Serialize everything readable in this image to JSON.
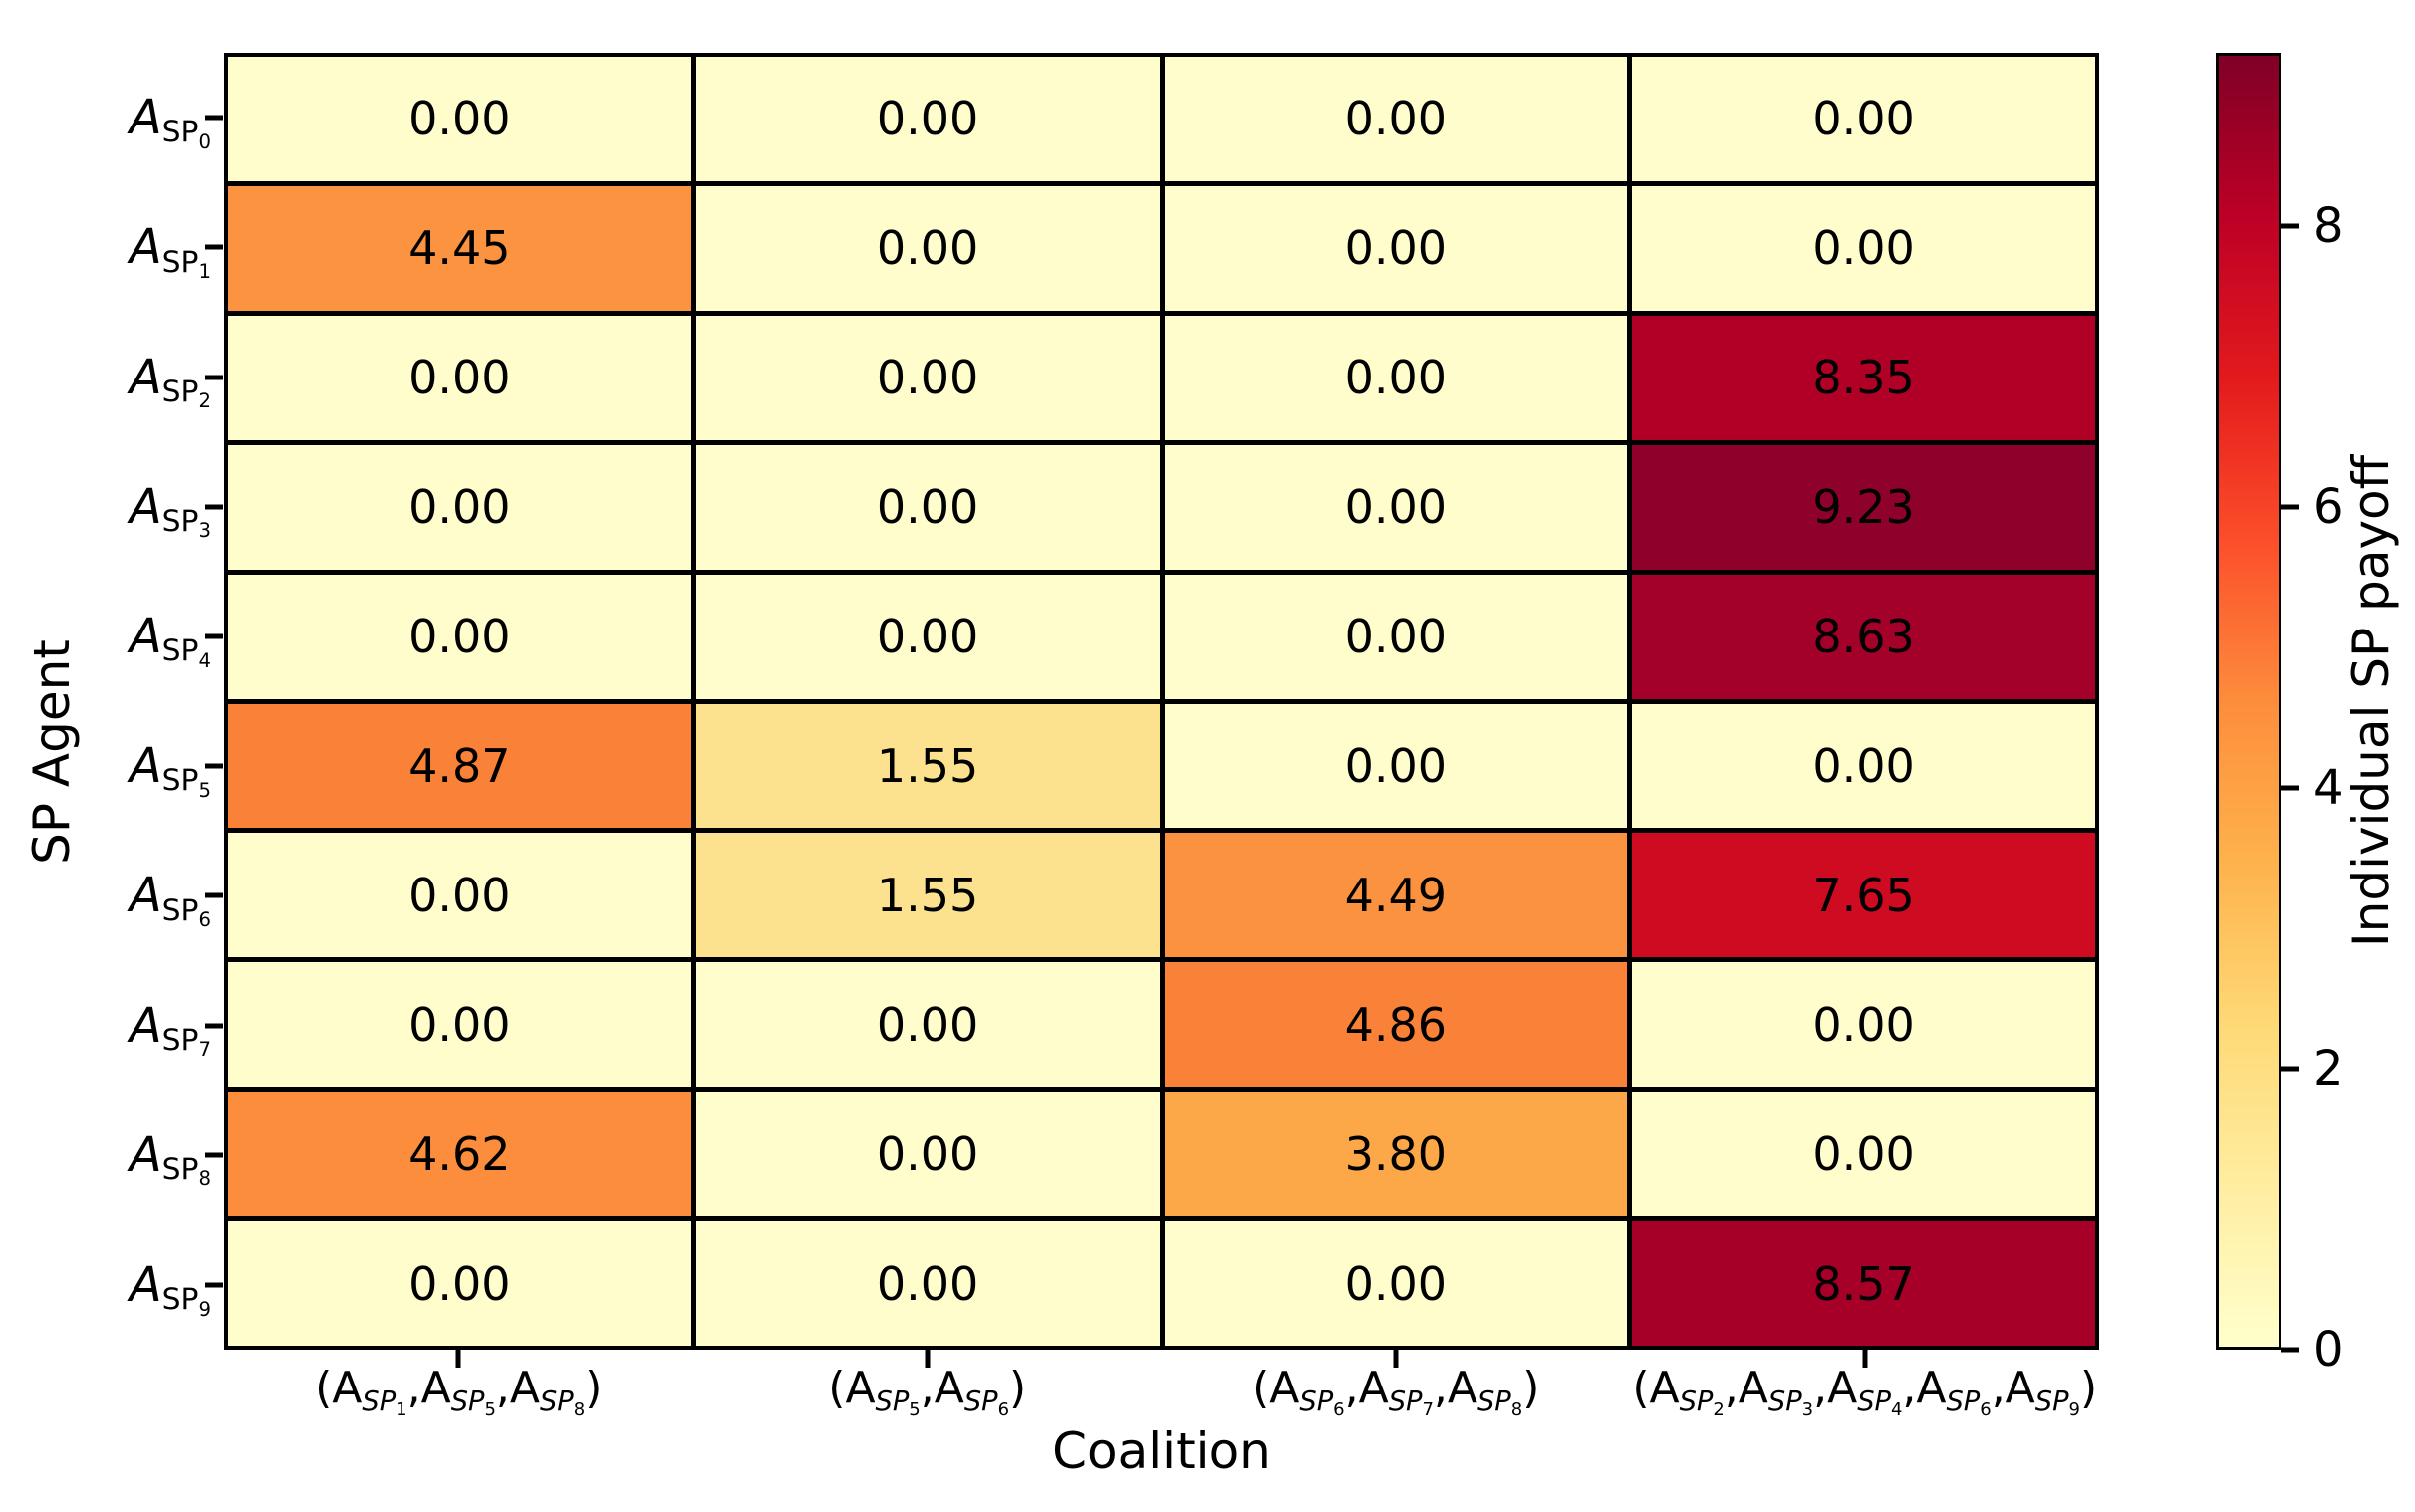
{
  "figure": {
    "xaxis_title": "Coalition",
    "yaxis_title": "SP Agent",
    "colorbar_title": "Individual SP payoff"
  },
  "chart_data": {
    "type": "heatmap",
    "title": "",
    "xlabel": "Coalition",
    "ylabel": "SP Agent",
    "colorbar_label": "Individual SP payoff",
    "colormap": "YlOrRd",
    "vmin": 0,
    "vmax": 9.23,
    "grid": "black cell borders",
    "legend_position": "right colorbar",
    "rows_plain": [
      "A_SP0",
      "A_SP1",
      "A_SP2",
      "A_SP3",
      "A_SP4",
      "A_SP5",
      "A_SP6",
      "A_SP7",
      "A_SP8",
      "A_SP9"
    ],
    "row_agents": [
      0,
      1,
      2,
      3,
      4,
      5,
      6,
      7,
      8,
      9
    ],
    "columns_plain": [
      "(A_SP1,A_SP5,A_SP8)",
      "(A_SP5,A_SP6)",
      "(A_SP6,A_SP7,A_SP8)",
      "(A_SP2,A_SP3,A_SP4,A_SP6,A_SP9)"
    ],
    "column_agents": [
      [
        1,
        5,
        8
      ],
      [
        5,
        6
      ],
      [
        6,
        7,
        8
      ],
      [
        2,
        3,
        4,
        6,
        9
      ]
    ],
    "values": [
      [
        0.0,
        0.0,
        0.0,
        0.0
      ],
      [
        4.45,
        0.0,
        0.0,
        0.0
      ],
      [
        0.0,
        0.0,
        0.0,
        8.35
      ],
      [
        0.0,
        0.0,
        0.0,
        9.23
      ],
      [
        0.0,
        0.0,
        0.0,
        8.63
      ],
      [
        4.87,
        1.55,
        0.0,
        0.0
      ],
      [
        0.0,
        1.55,
        4.49,
        7.65
      ],
      [
        0.0,
        0.0,
        4.86,
        0.0
      ],
      [
        4.62,
        0.0,
        3.8,
        0.0
      ],
      [
        0.0,
        0.0,
        0.0,
        8.57
      ]
    ],
    "value_labels": [
      [
        "0.00",
        "0.00",
        "0.00",
        "0.00"
      ],
      [
        "4.45",
        "0.00",
        "0.00",
        "0.00"
      ],
      [
        "0.00",
        "0.00",
        "0.00",
        "8.35"
      ],
      [
        "0.00",
        "0.00",
        "0.00",
        "9.23"
      ],
      [
        "0.00",
        "0.00",
        "0.00",
        "8.63"
      ],
      [
        "4.87",
        "1.55",
        "0.00",
        "0.00"
      ],
      [
        "0.00",
        "1.55",
        "4.49",
        "7.65"
      ],
      [
        "0.00",
        "0.00",
        "4.86",
        "0.00"
      ],
      [
        "4.62",
        "0.00",
        "3.80",
        "0.00"
      ],
      [
        "0.00",
        "0.00",
        "0.00",
        "8.57"
      ]
    ],
    "cell_colors": [
      [
        "#FFFDCC",
        "#FFFDCC",
        "#FFFDCC",
        "#FFFDCC"
      ],
      [
        "#FB9340",
        "#FFFDCC",
        "#FFFDCC",
        "#FFFDCC"
      ],
      [
        "#FFFDCC",
        "#FFFDCC",
        "#FFFDCC",
        "#B00026"
      ],
      [
        "#FFFDCC",
        "#FFFDCC",
        "#FFFDCC",
        "#8D012B"
      ],
      [
        "#FFFDCC",
        "#FFFDCC",
        "#FFFDCC",
        "#A3012A"
      ],
      [
        "#FA8138",
        "#FCE28F",
        "#FFFDCC",
        "#FFFDCC"
      ],
      [
        "#FFFDCC",
        "#FCE28F",
        "#FB923F",
        "#CE0B21"
      ],
      [
        "#FFFDCC",
        "#FFFDCC",
        "#FA8238",
        "#FFFDCC"
      ],
      [
        "#FB8D3C",
        "#FFFDCC",
        "#FDA848",
        "#FFFDCC"
      ],
      [
        "#FFFDCC",
        "#FFFDCC",
        "#FFFDCC",
        "#A70028"
      ]
    ],
    "colorbar_ticks": [
      0,
      2,
      4,
      6,
      8
    ],
    "colormap_stops": [
      {
        "pos": 0,
        "color": "#FFFFCC"
      },
      {
        "pos": 12.5,
        "color": "#FFEDA0"
      },
      {
        "pos": 25,
        "color": "#FED976"
      },
      {
        "pos": 37.5,
        "color": "#FEB24C"
      },
      {
        "pos": 50,
        "color": "#FD8D3C"
      },
      {
        "pos": 62.5,
        "color": "#FC4E2A"
      },
      {
        "pos": 75,
        "color": "#E31A1C"
      },
      {
        "pos": 87.5,
        "color": "#BD0026"
      },
      {
        "pos": 100,
        "color": "#800026"
      }
    ],
    "text_color": "#000000",
    "gridline_color": "#000000"
  }
}
